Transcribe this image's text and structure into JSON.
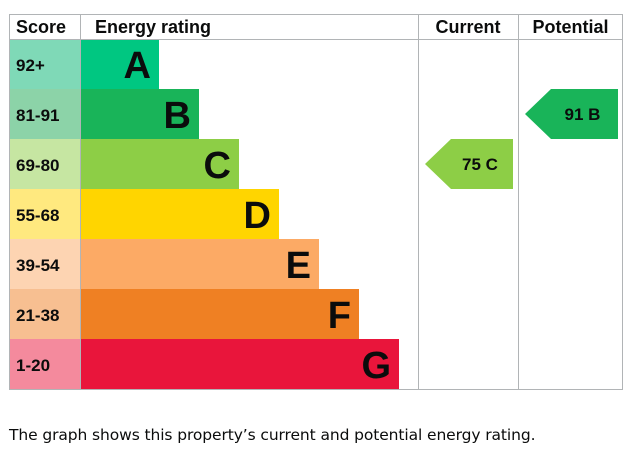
{
  "chart_data": {
    "type": "bar",
    "headers": {
      "score": "Score",
      "rating": "Energy rating",
      "current": "Current",
      "potential": "Potential"
    },
    "bands": [
      {
        "letter": "A",
        "range": "92+",
        "color": "#00c781",
        "tint": "#7fd9b7"
      },
      {
        "letter": "B",
        "range": "81-91",
        "color": "#19b459",
        "tint": "#8cd3a8"
      },
      {
        "letter": "C",
        "range": "69-80",
        "color": "#8dce46",
        "tint": "#c6e6a2"
      },
      {
        "letter": "D",
        "range": "55-68",
        "color": "#ffd500",
        "tint": "#ffe97f"
      },
      {
        "letter": "E",
        "range": "39-54",
        "color": "#fcaa65",
        "tint": "#fdd4b2"
      },
      {
        "letter": "F",
        "range": "21-38",
        "color": "#ef8023",
        "tint": "#f7bf91"
      },
      {
        "letter": "G",
        "range": "1-20",
        "color": "#e9153b",
        "tint": "#f48a9d"
      }
    ],
    "current": {
      "score": 75,
      "band": "C",
      "label": "75  C",
      "color": "#8dce46"
    },
    "potential": {
      "score": 91,
      "band": "B",
      "label": "91  B",
      "color": "#19b459"
    }
  },
  "caption": "The graph shows this property’s current and potential energy rating."
}
